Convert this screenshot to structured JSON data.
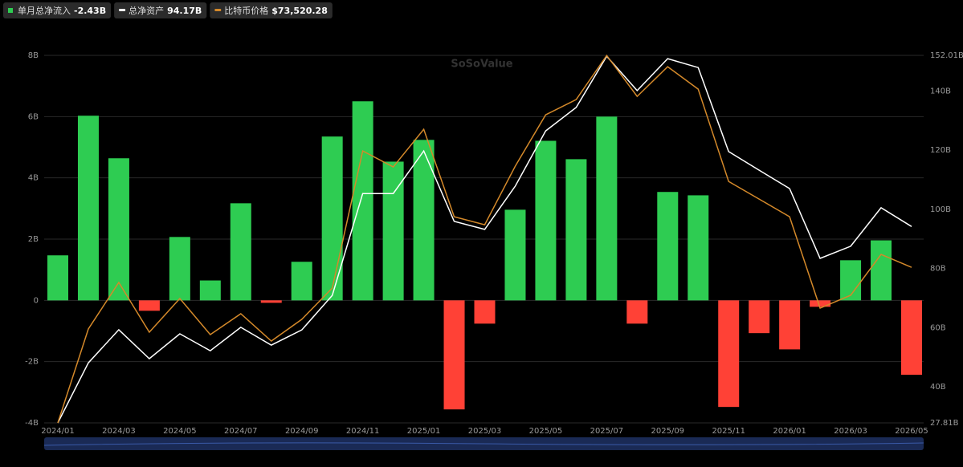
{
  "chart_data": {
    "type": "bar-line",
    "categories": [
      "2024/01",
      null,
      "2024/03",
      null,
      "2024/05",
      null,
      "2024/07",
      null,
      "2024/09",
      null,
      "2024/11",
      null,
      "2025/01",
      null,
      "2025/03",
      null,
      "2025/05",
      null,
      "2025/07",
      null,
      "2025/09",
      null,
      "2025/11",
      null,
      "2026/01",
      null,
      "2026/03",
      null,
      "2026/05"
    ],
    "series": [
      {
        "name": "单月总净流入",
        "legend_value": "-2.43B",
        "type": "bar",
        "pos_color": "#2ecc52",
        "neg_color": "#ff4136",
        "values": [
          1.47,
          6.03,
          4.64,
          -0.34,
          2.07,
          0.65,
          3.17,
          -0.08,
          1.26,
          5.35,
          6.5,
          4.53,
          5.24,
          -3.56,
          -0.76,
          2.96,
          5.21,
          4.61,
          6.0,
          -0.76,
          3.54,
          3.43,
          -3.48,
          -1.07,
          -1.6,
          -0.21,
          1.31,
          1.96,
          -2.43
        ]
      },
      {
        "name": "总净资产",
        "legend_value": "94.17B",
        "type": "line",
        "axis": "y2",
        "color": "#ffffff",
        "values": [
          27.81,
          48.1,
          59.3,
          49.5,
          57.9,
          52.2,
          60.1,
          54.1,
          59.2,
          70.9,
          105.3,
          105.3,
          119.7,
          95.9,
          93.2,
          107.8,
          126.5,
          134.4,
          151.7,
          140.1,
          150.9,
          147.9,
          119.5,
          113.2,
          107,
          83.4,
          87.5,
          100.5,
          94.17
        ]
      },
      {
        "name": "比特币价格",
        "legend_value": "$73,520.28",
        "type": "line",
        "axis": "y3",
        "color": "#d4892a",
        "values": [
          42500,
          61220,
          70500,
          60580,
          67300,
          60100,
          64260,
          58820,
          63140,
          69380,
          96740,
          93540,
          101060,
          83620,
          82020,
          93700,
          103940,
          106980,
          115780,
          107620,
          113540,
          109060,
          90660,
          87140,
          83620,
          65380,
          67940,
          76100,
          73520.28
        ]
      }
    ],
    "ylim": [
      -4,
      8
    ],
    "yticks": [
      {
        "value": -4,
        "label": "-4B"
      },
      {
        "value": -2,
        "label": "-2B"
      },
      {
        "value": 0,
        "label": "0"
      },
      {
        "value": 2,
        "label": "2B"
      },
      {
        "value": 4,
        "label": "4B"
      },
      {
        "value": 6,
        "label": "6B"
      },
      {
        "value": 8,
        "label": "8B"
      }
    ],
    "y2lim": [
      27.81,
      152.01
    ],
    "y2ticks": [
      {
        "value": 27.81,
        "label": "27.81B"
      },
      {
        "value": 40,
        "label": "40B"
      },
      {
        "value": 60,
        "label": "60B"
      },
      {
        "value": 80,
        "label": "80B"
      },
      {
        "value": 100,
        "label": "100B"
      },
      {
        "value": 120,
        "label": "120B"
      },
      {
        "value": 140,
        "label": "140B"
      },
      {
        "value": 152.01,
        "label": "152.01B"
      }
    ],
    "y3lim": [
      42500,
      115800
    ],
    "grid": true,
    "watermark": "SoSoValue"
  }
}
